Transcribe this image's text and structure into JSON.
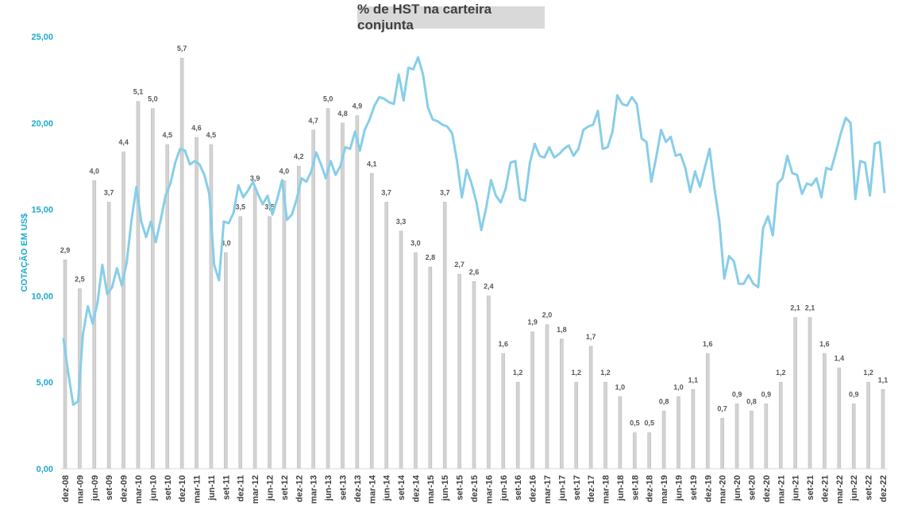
{
  "chart_data": {
    "type": "bar",
    "title": "% de HST na carteira conjunta",
    "xlabel": "",
    "ylabel": "COTAÇÃO EM US$",
    "ylim": [
      0,
      25
    ],
    "y_ticks": [
      "0,00",
      "5,00",
      "10,00",
      "15,00",
      "20,00",
      "25,00"
    ],
    "colors": {
      "bar": "#d3d3d3",
      "bar_border": "#bdbdbd",
      "line": "#87cee8",
      "axis_text": "#1eaacd",
      "label_text": "#595959"
    },
    "categories": [
      "dez-08",
      "mar-09",
      "jun-09",
      "set-09",
      "dez-09",
      "mar-10",
      "jun-10",
      "set-10",
      "dez-10",
      "mar-11",
      "jun-11",
      "set-11",
      "dez-11",
      "mar-12",
      "jun-12",
      "set-12",
      "dez-12",
      "mar-13",
      "jun-13",
      "set-13",
      "dez-13",
      "mar-14",
      "jun-14",
      "set-14",
      "dez-14",
      "mar-15",
      "jun-15",
      "set-15",
      "dez-15",
      "mar-16",
      "jun-16",
      "set-16",
      "dez-16",
      "mar-17",
      "jun-17",
      "set-17",
      "dez-17",
      "mar-18",
      "jun-18",
      "set-18",
      "dez-18",
      "mar-19",
      "jun-19",
      "set-19",
      "dez-19",
      "mar-20",
      "jun-20",
      "set-20",
      "dez-20",
      "mar-21",
      "jun-21",
      "set-21",
      "dez-21",
      "mar-22",
      "jun-22",
      "set-22",
      "dez-22"
    ],
    "bars": {
      "name": "% de HST na carteira conjunta",
      "values": [
        2.9,
        2.5,
        4.0,
        3.7,
        4.4,
        5.1,
        5.0,
        4.5,
        5.7,
        4.6,
        4.5,
        3.0,
        3.5,
        3.9,
        3.5,
        4.0,
        4.2,
        4.7,
        5.0,
        4.8,
        4.9,
        4.1,
        3.7,
        3.3,
        3.0,
        2.8,
        3.7,
        2.7,
        2.6,
        2.4,
        1.6,
        1.2,
        1.9,
        2.0,
        1.8,
        1.2,
        1.7,
        1.2,
        1.0,
        0.5,
        0.5,
        0.8,
        1.0,
        1.1,
        1.6,
        0.7,
        0.9,
        0.8,
        0.9,
        1.2,
        2.1,
        2.1,
        1.6,
        1.4,
        0.9,
        1.2,
        1.1
      ],
      "labels": [
        "2,9",
        "2,5",
        "4,0",
        "3,7",
        "4,4",
        "5,1",
        "5,0",
        "4,5",
        "5,7",
        "4,6",
        "4,5",
        "3,0",
        "3,5",
        "3,9",
        "3,5",
        "4,0",
        "4,2",
        "4,7",
        "5,0",
        "4,8",
        "4,9",
        "4,1",
        "3,7",
        "3,3",
        "3,0",
        "2,8",
        "3,7",
        "2,7",
        "2,6",
        "2,4",
        "1,6",
        "1,2",
        "1,9",
        "2,0",
        "1,8",
        "1,2",
        "1,7",
        "1,2",
        "1,0",
        "0,5",
        "0,5",
        "0,8",
        "1,0",
        "1,1",
        "1,6",
        "0,7",
        "0,9",
        "0,8",
        "0,9",
        "1,2",
        "2,1",
        "2,1",
        "1,6",
        "1,4",
        "0,9",
        "1,2",
        "1,1"
      ]
    },
    "line": {
      "name": "COTAÇÃO EM US$",
      "values": [
        7.5,
        5.5,
        3.7,
        3.9,
        7.8,
        9.4,
        8.4,
        9.6,
        11.8,
        10.1,
        10.5,
        11.6,
        10.6,
        11.9,
        14.4,
        16.3,
        14.3,
        13.4,
        14.3,
        13.1,
        14.4,
        15.8,
        16.5,
        17.7,
        18.5,
        18.4,
        17.6,
        17.8,
        17.6,
        17.0,
        15.9,
        11.8,
        10.9,
        14.3,
        14.2,
        14.8,
        16.4,
        15.7,
        16.1,
        16.6,
        15.9,
        15.3,
        15.8,
        14.7,
        15.6,
        16.7,
        14.4,
        14.7,
        15.6,
        16.8,
        16.6,
        17.2,
        18.3,
        17.6,
        16.8,
        17.8,
        17.0,
        17.5,
        18.6,
        18.5,
        19.5,
        18.4,
        19.6,
        20.2,
        21.0,
        21.5,
        21.4,
        21.2,
        21.1,
        22.8,
        21.3,
        23.2,
        23.1,
        23.8,
        22.8,
        20.9,
        20.2,
        20.1,
        19.9,
        19.8,
        19.4,
        17.8,
        15.7,
        17.3,
        16.5,
        15.4,
        13.8,
        15.1,
        16.7,
        15.8,
        15.4,
        16.2,
        17.7,
        17.8,
        15.6,
        15.5,
        17.7,
        18.8,
        18.1,
        18.0,
        18.6,
        18.0,
        18.2,
        18.5,
        18.7,
        18.1,
        18.5,
        19.6,
        19.8,
        19.9,
        20.7,
        18.5,
        18.6,
        19.5,
        21.6,
        21.1,
        21.0,
        21.5,
        21.1,
        19.1,
        18.9,
        16.6,
        18.0,
        19.6,
        18.9,
        19.2,
        18.1,
        18.2,
        17.4,
        16.0,
        17.2,
        16.3,
        17.4,
        18.5,
        16.2,
        14.3,
        11.0,
        12.3,
        12.0,
        10.7,
        10.7,
        11.2,
        10.7,
        10.5,
        13.9,
        14.6,
        13.5,
        16.5,
        16.8,
        18.1,
        17.1,
        17.0,
        15.9,
        16.5,
        16.4,
        16.8,
        15.7,
        17.4,
        17.3,
        18.3,
        19.4,
        20.3,
        20.0,
        15.6,
        17.8,
        17.7,
        15.8,
        18.8,
        18.9,
        16.0
      ]
    }
  }
}
